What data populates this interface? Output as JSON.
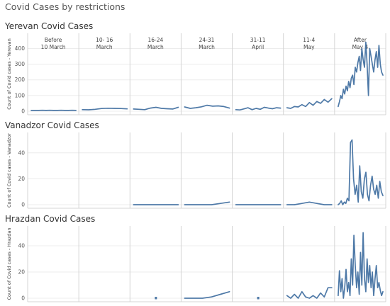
{
  "page_title": "Covid Cases by restrictions",
  "colors": {
    "line": "#4e79a7",
    "grid": "#ececec",
    "divider": "#d4d4d4",
    "text": "#333333"
  },
  "periods": [
    {
      "line1": "Before",
      "line2": "10 March"
    },
    {
      "line1": "10- 16",
      "line2": "March"
    },
    {
      "line1": "16-24",
      "line2": "March"
    },
    {
      "line1": "24-31",
      "line2": "March"
    },
    {
      "line1": "31-11",
      "line2": "April"
    },
    {
      "line1": "11-4",
      "line2": "May"
    },
    {
      "line1": "After",
      "line2": "May 4"
    }
  ],
  "chart_data": [
    {
      "type": "line",
      "title": "Yerevan Covid Cases",
      "ylabel": "Count of Covid cases - Yerevan",
      "ylim": [
        0,
        470
      ],
      "yticks": [
        0,
        100,
        200,
        300,
        400
      ],
      "series": [
        [
          5,
          5,
          5,
          6,
          5,
          6,
          5,
          5,
          6,
          5,
          5,
          6,
          5
        ],
        [
          10,
          9,
          12,
          17,
          19,
          18,
          17,
          15
        ],
        [
          14,
          12,
          10,
          20,
          25,
          18,
          16,
          14,
          25
        ],
        [
          27,
          18,
          22,
          28,
          38,
          32,
          34,
          30,
          20
        ],
        [
          10,
          8,
          15,
          22,
          10,
          18,
          12,
          25,
          20,
          16,
          22,
          20
        ],
        [
          22,
          18,
          30,
          27,
          42,
          30,
          55,
          38,
          62,
          50,
          75,
          58,
          80
        ],
        [
          30,
          60,
          100,
          80,
          140,
          110,
          160,
          130,
          190,
          150,
          210,
          230,
          170,
          280,
          250,
          310,
          350,
          260,
          400,
          330,
          280,
          440,
          300,
          100,
          400,
          350,
          300,
          250,
          330,
          380,
          280,
          420,
          300,
          250,
          230
        ]
      ]
    },
    {
      "type": "line",
      "title": "Vanadzor Covid Cases",
      "ylabel": "Count of Covid cases - Vanadzor",
      "ylim": [
        0,
        53
      ],
      "yticks": [
        0,
        20,
        40
      ],
      "series": [
        null,
        null,
        [
          0,
          0,
          0,
          0,
          0,
          0
        ],
        [
          0,
          0,
          0,
          0,
          1,
          2
        ],
        [
          0,
          0,
          0,
          0,
          0,
          0
        ],
        [
          0,
          0,
          1,
          2,
          1,
          0,
          0
        ],
        [
          0,
          1,
          3,
          0,
          2,
          1,
          5,
          3,
          48,
          50,
          20,
          8,
          15,
          2,
          30,
          10,
          5,
          20,
          25,
          8,
          3,
          15,
          22,
          12,
          8,
          15,
          5,
          18,
          10,
          7
        ]
      ]
    },
    {
      "type": "line",
      "title": "Hrazdan Covid Cases",
      "ylabel": "Count of Covid cases - Hrazdan",
      "ylim": [
        0,
        53
      ],
      "yticks": [
        0,
        20,
        40
      ],
      "series": [
        null,
        null,
        [
          0
        ],
        [
          0,
          0,
          0,
          1,
          3,
          5
        ],
        [
          0
        ],
        [
          2,
          0,
          3,
          0,
          5,
          1,
          0,
          2,
          0,
          4,
          1,
          8,
          8
        ],
        [
          2,
          21,
          5,
          15,
          0,
          8,
          22,
          5,
          12,
          2,
          30,
          10,
          48,
          25,
          8,
          20,
          3,
          35,
          10,
          50,
          15,
          5,
          30,
          12,
          25,
          8,
          20,
          2,
          15,
          25,
          8,
          12,
          6,
          2,
          5
        ]
      ]
    }
  ]
}
